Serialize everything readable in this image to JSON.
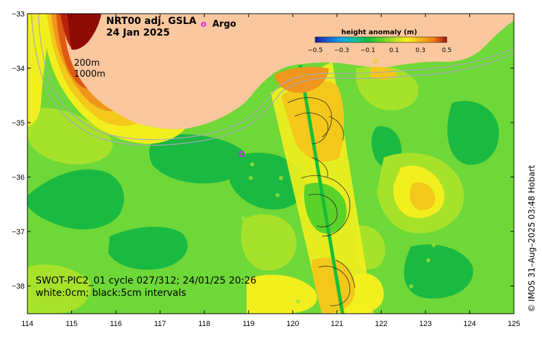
{
  "title": {
    "line1": "NRT00 adj. GSLA",
    "line2": "24 Jan 2025"
  },
  "legend": {
    "argo_symbol": "o",
    "argo_label": "Argo"
  },
  "colorbar": {
    "title": "height anomaly (m)",
    "ticks": [
      "−0.5",
      "−0.3",
      "−0.1",
      "0.1",
      "0.3",
      "0.5"
    ],
    "colors": [
      "#1c1c9e",
      "#1763d6",
      "#13a6e3",
      "#11c1a0",
      "#16be3b",
      "#5ad22a",
      "#b5e324",
      "#f5f01e",
      "#f5b61a",
      "#ef7d16",
      "#d94612",
      "#a3170c"
    ]
  },
  "isobaths": {
    "label_200": "200m",
    "label_1000": "1000m"
  },
  "swot_note": {
    "line1": "SWOT-PIC2_01 cycle 027/312; 24/01/25 20:26",
    "line2": "white:0cm; black:5cm intervals"
  },
  "credit": "© IMOS 31–Aug–2025 03:48 Hobart",
  "axes": {
    "x_labels": [
      "114",
      "115",
      "116",
      "117",
      "118",
      "119",
      "120",
      "121",
      "122",
      "123",
      "124",
      "125"
    ],
    "y_labels": [
      "−33",
      "−34",
      "−35",
      "−36",
      "−37",
      "−38"
    ]
  },
  "map_colors": {
    "land": "#fac79e",
    "ocean_base": "#6ed838",
    "dark_green": "#1ab942",
    "light_green": "#a7e22a",
    "yellow": "#f2ef1e",
    "gold": "#f3c81a",
    "orange": "#f0961c",
    "dark_orange": "#df5a13",
    "red_brown": "#b8220b",
    "dark_red": "#8f0c06",
    "argo_marker": "#e020e0"
  }
}
